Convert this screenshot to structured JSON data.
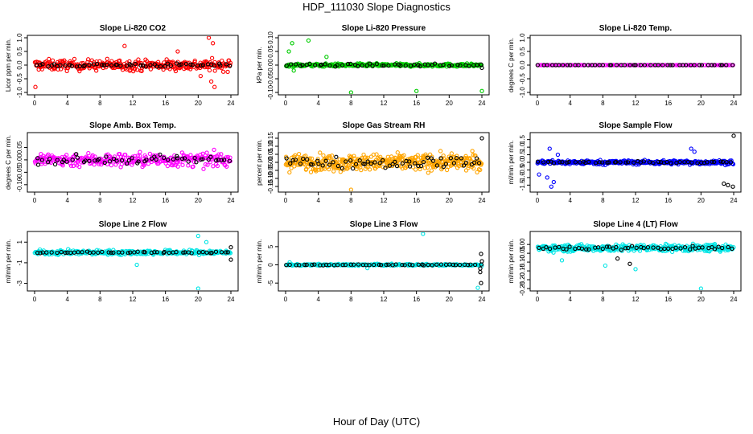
{
  "figure": {
    "title": "HDP_111030  Slope Diagnostics",
    "xlabel": "Hour of Day (UTC)"
  },
  "chart_data": [
    {
      "type": "scatter",
      "title": "Slope Li-820 CO2",
      "ylabel": "Licor ppm per min.",
      "xlim": [
        0,
        24
      ],
      "ylim": [
        -1.0,
        1.0
      ],
      "xticks": [
        "0",
        "4",
        "8",
        "12",
        "16",
        "20",
        "24"
      ],
      "yticks": [
        {
          "v": -1.0,
          "t": "-1.0"
        },
        {
          "v": -0.5,
          "t": "-0.5"
        },
        {
          "v": 0.0,
          "t": "0.0"
        },
        {
          "v": 0.5,
          "t": "0.5"
        },
        {
          "v": 1.0,
          "t": "1.0"
        }
      ],
      "series": [
        {
          "name": "all",
          "color": "#ff0000",
          "center": 0.0,
          "spread": 0.35,
          "count": 320,
          "outliers": [
            [
              21.3,
              1.0
            ],
            [
              21.8,
              0.8
            ],
            [
              21.6,
              -0.6
            ],
            [
              22.0,
              -0.8
            ],
            [
              11.0,
              0.7
            ],
            [
              0.1,
              -0.8
            ],
            [
              17.5,
              0.5
            ],
            [
              20.3,
              -0.4
            ]
          ]
        },
        {
          "name": "hourly",
          "color": "#000000",
          "center": 0.0,
          "spread": 0.12,
          "count": 55,
          "outliers": []
        }
      ]
    },
    {
      "type": "scatter",
      "title": "Slope Li-820 Pressure",
      "ylabel": "kPa per min.",
      "xlim": [
        0,
        24
      ],
      "ylim": [
        -0.1,
        0.1
      ],
      "xticks": [
        "0",
        "4",
        "8",
        "12",
        "16",
        "20",
        "24"
      ],
      "yticks": [
        {
          "v": -0.1,
          "t": "-0.10"
        },
        {
          "v": -0.05,
          "t": "-0.05"
        },
        {
          "v": 0.0,
          "t": "0.00"
        },
        {
          "v": 0.05,
          "t": "0.05"
        },
        {
          "v": 0.1,
          "t": "0.10"
        }
      ],
      "series": [
        {
          "name": "all",
          "color": "#00cc00",
          "center": 0.0,
          "spread": 0.01,
          "count": 300,
          "outliers": [
            [
              0.8,
              0.08
            ],
            [
              2.8,
              0.09
            ],
            [
              0.4,
              0.05
            ],
            [
              8.0,
              -0.1
            ],
            [
              16.0,
              -0.095
            ],
            [
              24.0,
              -0.095
            ],
            [
              1.0,
              -0.02
            ],
            [
              5.0,
              0.03
            ]
          ]
        },
        {
          "name": "hourly",
          "color": "#000000",
          "center": 0.0,
          "spread": 0.008,
          "count": 50,
          "outliers": [
            [
              24.0,
              -0.01
            ]
          ]
        }
      ]
    },
    {
      "type": "scatter",
      "title": "Slope Li-820 Temp.",
      "ylabel": "degrees C per min.",
      "xlim": [
        0,
        24
      ],
      "ylim": [
        -1.0,
        1.0
      ],
      "xticks": [
        "0",
        "4",
        "8",
        "12",
        "16",
        "20",
        "24"
      ],
      "yticks": [
        {
          "v": -1.0,
          "t": "-1.0"
        },
        {
          "v": -0.5,
          "t": "-0.5"
        },
        {
          "v": 0.0,
          "t": "0.0"
        },
        {
          "v": 0.5,
          "t": "0.5"
        },
        {
          "v": 1.0,
          "t": "1.0"
        }
      ],
      "series": [
        {
          "name": "all",
          "color": "#ff00ff",
          "center": 0.0,
          "spread": 0.0,
          "count": 120,
          "outliers": []
        },
        {
          "name": "hourly",
          "color": "#000000",
          "center": 0.0,
          "spread": 0.0,
          "count": 48,
          "outliers": []
        }
      ]
    },
    {
      "type": "scatter",
      "title": "Slope Amb. Box Temp.",
      "ylabel": "degrees C per min.",
      "xlim": [
        0,
        24
      ],
      "ylim": [
        -0.12,
        0.1
      ],
      "xticks": [
        "0",
        "4",
        "8",
        "12",
        "16",
        "20",
        "24"
      ],
      "yticks": [
        {
          "v": -0.1,
          "t": "-0.10"
        },
        {
          "v": -0.05,
          "t": "-0.05"
        },
        {
          "v": 0.0,
          "t": "0.00"
        },
        {
          "v": 0.05,
          "t": "0.05"
        }
      ],
      "series": [
        {
          "name": "all",
          "color": "#ff00ff",
          "center": 0.0,
          "spread": 0.05,
          "count": 300,
          "outliers": []
        },
        {
          "name": "hourly",
          "color": "#000000",
          "center": 0.0,
          "spread": 0.03,
          "count": 55,
          "outliers": []
        }
      ]
    },
    {
      "type": "scatter",
      "title": "Slope Gas Stream RH",
      "ylabel": "percent per min.",
      "xlim": [
        0,
        24
      ],
      "ylim": [
        -0.17,
        0.17
      ],
      "xticks": [
        "0",
        "4",
        "8",
        "12",
        "16",
        "20",
        "24"
      ],
      "yticks": [
        {
          "v": -0.15,
          "t": "-0.15"
        },
        {
          "v": -0.1,
          "t": "-0.10"
        },
        {
          "v": -0.05,
          "t": "-0.05"
        },
        {
          "v": 0.0,
          "t": "0.00"
        },
        {
          "v": 0.05,
          "t": "0.05"
        },
        {
          "v": 0.1,
          "t": "0.10"
        },
        {
          "v": 0.15,
          "t": "0.15"
        }
      ],
      "series": [
        {
          "name": "all",
          "color": "#ffa500",
          "center": 0.0,
          "spread": 0.09,
          "count": 420,
          "outliers": [
            [
              8.0,
              -0.17
            ]
          ]
        },
        {
          "name": "hourly",
          "color": "#000000",
          "center": 0.0,
          "spread": 0.06,
          "count": 60,
          "outliers": [
            [
              24.0,
              0.15
            ]
          ]
        }
      ]
    },
    {
      "type": "scatter",
      "title": "Slope Sample Flow",
      "ylabel": "ml/min per min.",
      "xlim": [
        0,
        24
      ],
      "ylim": [
        -1.8,
        1.8
      ],
      "xticks": [
        "0",
        "4",
        "8",
        "12",
        "16",
        "20",
        "24"
      ],
      "yticks": [
        {
          "v": -1.5,
          "t": "-1.5"
        },
        {
          "v": -1.0,
          "t": "-1.0"
        },
        {
          "v": -0.5,
          "t": "-0.5"
        },
        {
          "v": 0.0,
          "t": "0.0"
        },
        {
          "v": 0.5,
          "t": "0.5"
        },
        {
          "v": 1.0,
          "t": "1.0"
        },
        {
          "v": 1.5,
          "t": "1.5"
        }
      ],
      "series": [
        {
          "name": "all",
          "color": "#0000ff",
          "center": 0.0,
          "spread": 0.25,
          "count": 320,
          "outliers": [
            [
              1.7,
              -1.6
            ],
            [
              2.0,
              -1.3
            ],
            [
              1.2,
              -1.0
            ],
            [
              0.2,
              -0.8
            ],
            [
              18.8,
              0.9
            ],
            [
              19.2,
              0.7
            ],
            [
              1.5,
              0.9
            ],
            [
              2.5,
              0.5
            ]
          ]
        },
        {
          "name": "hourly",
          "color": "#000000",
          "center": 0.0,
          "spread": 0.1,
          "count": 50,
          "outliers": [
            [
              24.0,
              1.75
            ],
            [
              23.9,
              -1.6
            ],
            [
              22.8,
              -1.4
            ],
            [
              23.3,
              -1.5
            ]
          ]
        }
      ]
    },
    {
      "type": "scatter",
      "title": "Slope Line 2 Flow",
      "ylabel": "ml/min per min.",
      "xlim": [
        0,
        24
      ],
      "ylim": [
        -3.5,
        1.8
      ],
      "xticks": [
        "0",
        "4",
        "8",
        "12",
        "16",
        "20",
        "24"
      ],
      "yticks": [
        {
          "v": -3,
          "t": "-3"
        },
        {
          "v": -1,
          "t": "-1"
        },
        {
          "v": 1,
          "t": "1"
        }
      ],
      "series": [
        {
          "name": "all",
          "color": "#00e5e5",
          "center": 0.0,
          "spread": 0.4,
          "count": 320,
          "outliers": [
            [
              20.0,
              -3.5
            ],
            [
              20.0,
              1.6
            ],
            [
              12.5,
              -1.2
            ],
            [
              21.0,
              1.0
            ]
          ]
        },
        {
          "name": "hourly",
          "color": "#000000",
          "center": 0.0,
          "spread": 0.12,
          "count": 50,
          "outliers": [
            [
              24.0,
              0.5
            ],
            [
              24.0,
              -0.7
            ]
          ]
        }
      ]
    },
    {
      "type": "scatter",
      "title": "Slope Line 3 Flow",
      "ylabel": "ml/min per min.",
      "xlim": [
        0,
        24
      ],
      "ylim": [
        -6.5,
        8.5
      ],
      "xticks": [
        "0",
        "4",
        "8",
        "12",
        "16",
        "20",
        "24"
      ],
      "yticks": [
        {
          "v": -5,
          "t": "-5"
        },
        {
          "v": 0,
          "t": "0"
        },
        {
          "v": 5,
          "t": "5"
        }
      ],
      "series": [
        {
          "name": "all",
          "color": "#00e5e5",
          "center": 0.0,
          "spread": 0.4,
          "count": 280,
          "outliers": [
            [
              16.8,
              8.5
            ],
            [
              23.5,
              -6.3
            ],
            [
              0.5,
              0.7
            ],
            [
              10.0,
              -0.9
            ]
          ]
        },
        {
          "name": "hourly",
          "color": "#000000",
          "center": 0.0,
          "spread": 0.2,
          "count": 50,
          "outliers": [
            [
              23.9,
              3.0
            ],
            [
              23.8,
              -2.0
            ],
            [
              23.9,
              -5.0
            ],
            [
              24.0,
              1.0
            ],
            [
              23.8,
              -1.0
            ]
          ]
        }
      ]
    },
    {
      "type": "scatter",
      "title": "Slope Line 4 (LT) Flow",
      "ylabel": "ml/min per min.",
      "xlim": [
        0,
        24
      ],
      "ylim": [
        -0.25,
        0.06
      ],
      "xticks": [
        "0",
        "4",
        "8",
        "12",
        "16",
        "20",
        "24"
      ],
      "yticks": [
        {
          "v": -0.25,
          "t": "-0.25"
        },
        {
          "v": -0.2,
          "t": "-0.20"
        },
        {
          "v": -0.15,
          "t": "-0.15"
        },
        {
          "v": -0.1,
          "t": "-0.10"
        },
        {
          "v": -0.05,
          "t": "-0.05"
        },
        {
          "v": 0.0,
          "t": "0.00"
        }
      ],
      "series": [
        {
          "name": "all",
          "color": "#00e5e5",
          "center": -0.02,
          "spread": 0.035,
          "count": 360,
          "outliers": [
            [
              20.0,
              -0.25
            ],
            [
              12.0,
              -0.14
            ],
            [
              8.3,
              -0.12
            ],
            [
              3.0,
              -0.09
            ]
          ]
        },
        {
          "name": "hourly",
          "color": "#000000",
          "center": -0.02,
          "spread": 0.02,
          "count": 50,
          "outliers": [
            [
              11.3,
              -0.11
            ],
            [
              9.8,
              -0.08
            ]
          ]
        }
      ]
    }
  ]
}
